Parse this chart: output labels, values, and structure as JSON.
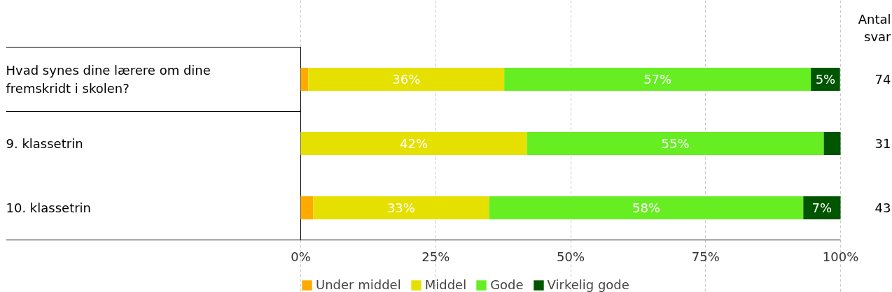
{
  "chart_data": {
    "type": "bar",
    "orientation": "horizontal",
    "stacked": true,
    "categories": [
      "Hvad synes dine lærere om dine fremskridt i skolen?",
      "9. klassetrin",
      "10. klassetrin"
    ],
    "series": [
      {
        "name": "Under middel",
        "color": "#ffaa00",
        "values": [
          1.4,
          0,
          2.3
        ],
        "value_labels": [
          null,
          null,
          null
        ]
      },
      {
        "name": "Middel",
        "color": "#e6e000",
        "values": [
          36.3,
          41.9,
          32.6
        ],
        "value_labels": [
          "36%",
          "42%",
          "33%"
        ]
      },
      {
        "name": "Gode",
        "color": "#66ee22",
        "values": [
          56.8,
          55.0,
          58.2
        ],
        "value_labels": [
          "57%",
          "55%",
          "58%"
        ]
      },
      {
        "name": "Virkelig gode",
        "color": "#005500",
        "values": [
          5.4,
          3.1,
          6.9
        ],
        "value_labels": [
          "5%",
          null,
          "7%"
        ]
      }
    ],
    "xlim": [
      0,
      100
    ],
    "xticks": [
      {
        "value": 0,
        "label": "0%"
      },
      {
        "value": 25,
        "label": "25%"
      },
      {
        "value": 50,
        "label": "50%"
      },
      {
        "value": 75,
        "label": "75%"
      },
      {
        "value": 100,
        "label": "100%"
      }
    ],
    "grid": "x",
    "legend": "bottom",
    "annotations": [
      "Antal svar",
      "74",
      "31",
      "43"
    ]
  }
}
